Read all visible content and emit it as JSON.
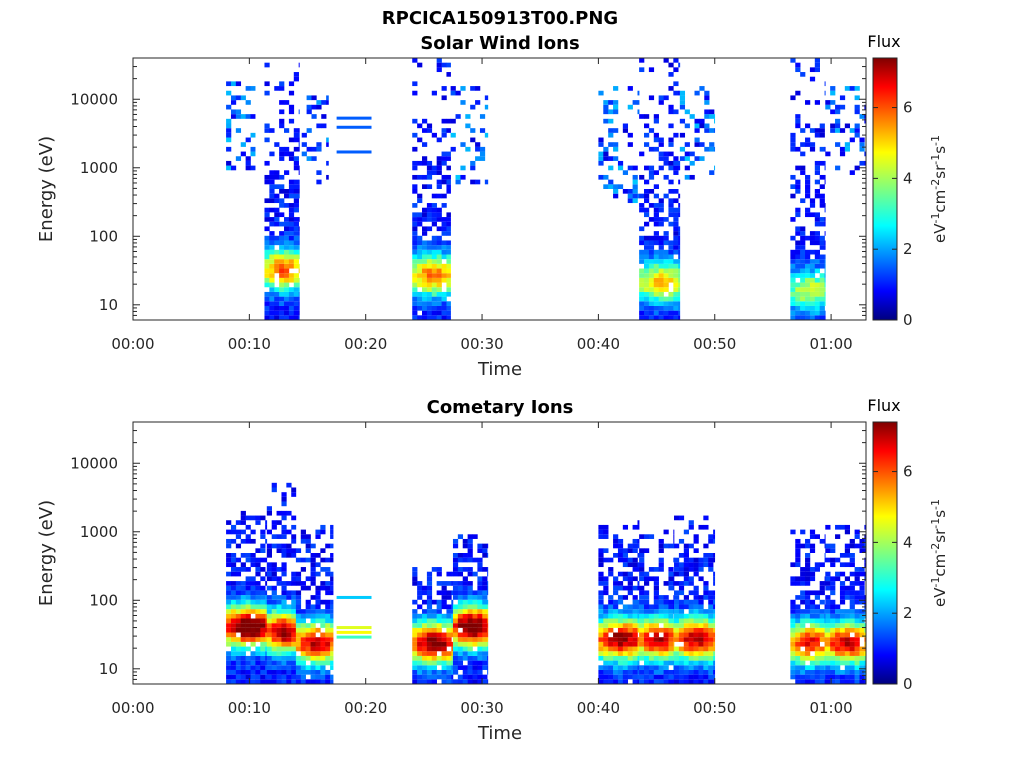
{
  "figure_title": "RPCICA150913T00.PNG",
  "panels": [
    {
      "key": "solar_wind",
      "title": "Solar Wind Ions",
      "xlabel": "Time",
      "ylabel": "Energy (eV)",
      "colorbar_title": "Flux",
      "colorbar_label": "eV-1cm-2sr-1s-1"
    },
    {
      "key": "cometary",
      "title": "Cometary Ions",
      "xlabel": "Time",
      "ylabel": "Energy (eV)",
      "colorbar_title": "Flux",
      "colorbar_label": "eV-1cm-2sr-1s-1"
    }
  ],
  "chart_data": {
    "type": "heatmap",
    "x_unit": "minutes",
    "xlim": [
      0,
      63
    ],
    "x_ticks": [
      0,
      10,
      20,
      30,
      40,
      50,
      60
    ],
    "x_tick_labels": [
      "00:00",
      "00:10",
      "00:20",
      "00:30",
      "00:40",
      "00:50",
      "01:00"
    ],
    "y_scale": "log",
    "ylim": [
      6,
      40000
    ],
    "y_ticks": [
      10,
      100,
      1000,
      10000
    ],
    "y_tick_labels": [
      "10",
      "100",
      "1000",
      "10000"
    ],
    "colorbar": {
      "range": [
        0,
        7.4
      ],
      "ticks": [
        0,
        2,
        4,
        6
      ],
      "tick_labels": [
        "0",
        "2",
        "4",
        "6"
      ],
      "colormap": "jet"
    },
    "panels": [
      {
        "title": "Solar Wind Ions",
        "bursts": [
          {
            "t_start": 8.0,
            "t_end": 10.5,
            "e_min": 700,
            "e_max": 18000,
            "intensity": "sparse low"
          },
          {
            "t_start": 11.3,
            "t_end": 14.3,
            "e_min": 6,
            "e_max": 35000,
            "peak_energy": 30,
            "peak_flux": 4.8
          },
          {
            "t_start": 14.5,
            "t_end": 16.8,
            "e_min": 500,
            "e_max": 10000,
            "intensity": "sparse low"
          },
          {
            "t_start": 24.0,
            "t_end": 27.3,
            "e_min": 6,
            "e_max": 35000,
            "peak_energy": 25,
            "peak_flux": 4.6
          },
          {
            "t_start": 27.3,
            "t_end": 30.5,
            "e_min": 500,
            "e_max": 15000,
            "intensity": "sparse low"
          },
          {
            "t_start": 40.0,
            "t_end": 43.5,
            "e_min": 300,
            "e_max": 15000,
            "intensity": "sparse low"
          },
          {
            "t_start": 43.5,
            "t_end": 47.0,
            "e_min": 6,
            "e_max": 35000,
            "peak_energy": 20,
            "peak_flux": 4.0
          },
          {
            "t_start": 47.0,
            "t_end": 50.0,
            "e_min": 600,
            "e_max": 15000,
            "intensity": "sparse low"
          },
          {
            "t_start": 56.5,
            "t_end": 59.5,
            "e_min": 6,
            "e_max": 38000,
            "peak_energy": 15,
            "peak_flux": 3.2
          },
          {
            "t_start": 59.5,
            "t_end": 63.0,
            "e_min": 700,
            "e_max": 15000,
            "intensity": "sparse low"
          }
        ],
        "horizontal_lines": [
          {
            "t_start": 17.5,
            "t_end": 20.5,
            "energy": 5300,
            "flux": 1.6
          },
          {
            "t_start": 17.5,
            "t_end": 20.5,
            "energy": 3900,
            "flux": 1.6
          },
          {
            "t_start": 17.5,
            "t_end": 20.5,
            "energy": 1700,
            "flux": 1.6
          }
        ]
      },
      {
        "title": "Cometary Ions",
        "bursts": [
          {
            "t_start": 8.0,
            "t_end": 11.5,
            "e_min": 6,
            "e_max": 2000,
            "peak_energy": 38,
            "peak_flux": 7.0
          },
          {
            "t_start": 11.5,
            "t_end": 14.0,
            "e_min": 6,
            "e_max": 4500,
            "peak_energy": 32,
            "peak_flux": 6.3
          },
          {
            "t_start": 14.0,
            "t_end": 17.2,
            "e_min": 6,
            "e_max": 1200,
            "peak_energy": 22,
            "peak_flux": 6.0
          },
          {
            "t_start": 24.0,
            "t_end": 27.5,
            "e_min": 6,
            "e_max": 300,
            "peak_energy": 22,
            "peak_flux": 6.4
          },
          {
            "t_start": 27.5,
            "t_end": 30.5,
            "e_min": 6,
            "e_max": 900,
            "peak_energy": 38,
            "peak_flux": 6.9
          },
          {
            "t_start": 40.0,
            "t_end": 43.5,
            "e_min": 6,
            "e_max": 1300,
            "peak_energy": 25,
            "peak_flux": 6.3
          },
          {
            "t_start": 43.5,
            "t_end": 46.5,
            "e_min": 6,
            "e_max": 1000,
            "peak_energy": 25,
            "peak_flux": 6.0
          },
          {
            "t_start": 46.5,
            "t_end": 50.0,
            "e_min": 6,
            "e_max": 1500,
            "peak_energy": 25,
            "peak_flux": 6.0
          },
          {
            "t_start": 56.5,
            "t_end": 59.5,
            "e_min": 6,
            "e_max": 1000,
            "peak_energy": 22,
            "peak_flux": 5.5
          },
          {
            "t_start": 59.5,
            "t_end": 63.0,
            "e_min": 6,
            "e_max": 1200,
            "peak_energy": 22,
            "peak_flux": 5.8
          }
        ],
        "horizontal_lines": [
          {
            "t_start": 17.5,
            "t_end": 20.5,
            "energy": 110,
            "flux": 2.4
          },
          {
            "t_start": 17.5,
            "t_end": 20.5,
            "energy": 40,
            "flux": 4.4
          },
          {
            "t_start": 17.5,
            "t_end": 20.5,
            "energy": 34,
            "flux": 4.6
          },
          {
            "t_start": 17.5,
            "t_end": 20.5,
            "energy": 29,
            "flux": 3.2
          }
        ]
      }
    ]
  }
}
